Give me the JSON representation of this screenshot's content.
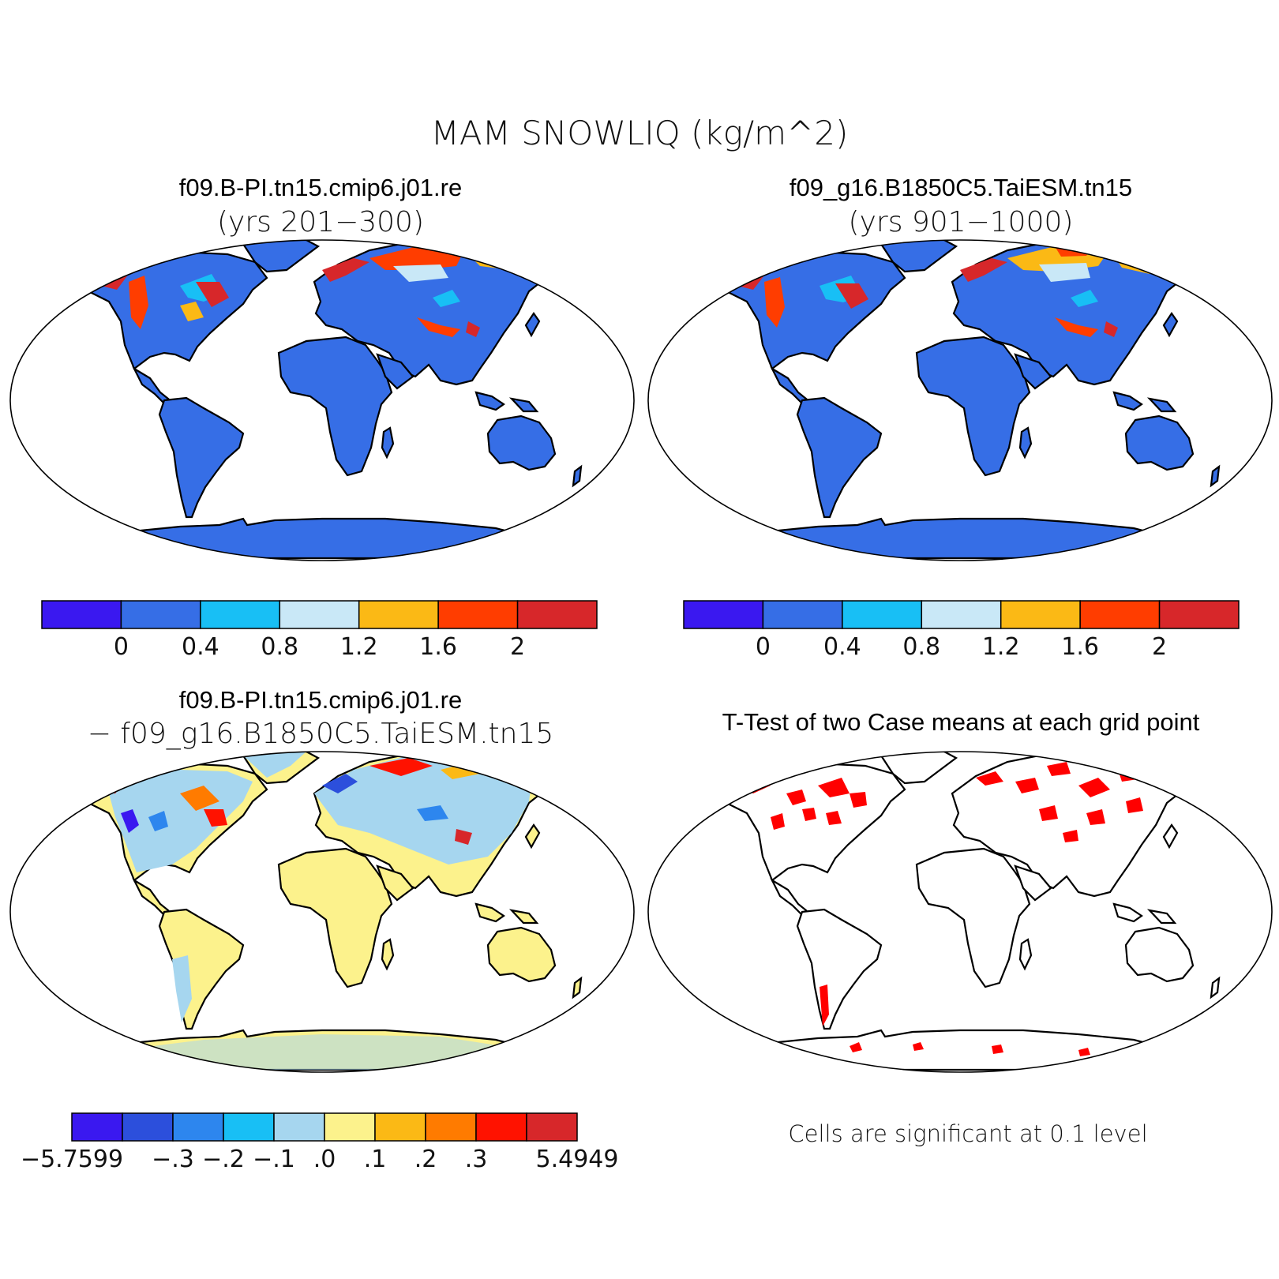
{
  "figure": {
    "title": "MAM SNOWLIQ (kg/m^2)"
  },
  "panels": [
    {
      "id": "case1",
      "title": "f09.B-PI.tn15.cmip6.j01.re",
      "subtitle": "(yrs 201−300)",
      "style": "field",
      "colorbar": {
        "colors": [
          "#3a18f0",
          "#366ee6",
          "#18bff5",
          "#c9e8f7",
          "#fbb915",
          "#ff3d00",
          "#d7272a"
        ],
        "labels": [
          "0",
          "0.4",
          "0.8",
          "1.2",
          "1.6",
          "2"
        ]
      }
    },
    {
      "id": "case2",
      "title": "f09_g16.B1850C5.TaiESM.tn15",
      "subtitle": "(yrs 901−1000)",
      "style": "field",
      "colorbar": {
        "colors": [
          "#3a18f0",
          "#366ee6",
          "#18bff5",
          "#c9e8f7",
          "#fbb915",
          "#ff3d00",
          "#d7272a"
        ],
        "labels": [
          "0",
          "0.4",
          "0.8",
          "1.2",
          "1.6",
          "2"
        ]
      }
    },
    {
      "id": "diff",
      "title": "f09.B-PI.tn15.cmip6.j01.re",
      "subtitle": "− f09_g16.B1850C5.TaiESM.tn15",
      "style": "diff",
      "colorbar": {
        "colors": [
          "#3a18f0",
          "#2c4fdc",
          "#2d86ee",
          "#18bff5",
          "#a6d6ef",
          "#fcf28c",
          "#fbb915",
          "#ff7b00",
          "#ff1200",
          "#d7272a"
        ],
        "labels": [
          "−5.7599",
          "−.3",
          "−.2",
          "−.1",
          ".0",
          ".1",
          ".2",
          ".3",
          "5.4949"
        ],
        "label_slots": [
          0,
          2,
          3,
          4,
          5,
          6,
          7,
          8,
          10
        ]
      }
    },
    {
      "id": "ttest",
      "title": "T-Test of two Case means at each grid point",
      "subtitle": "",
      "style": "ttest",
      "note": "Cells are significant at 0.1 level"
    }
  ]
}
